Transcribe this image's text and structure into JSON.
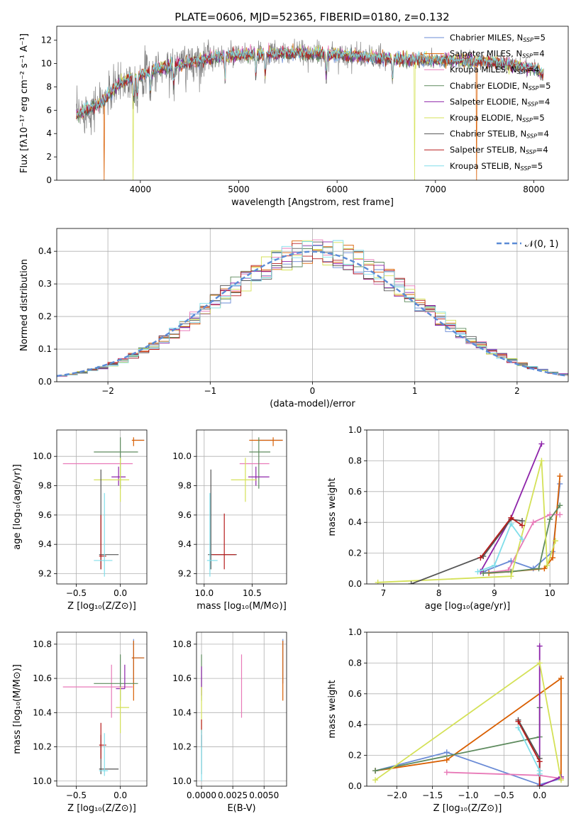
{
  "colors": {
    "Chabrier MILES": "#6a8bd6",
    "Salpeter MILES": "#d95f02",
    "Kroupa MILES": "#e87ab8",
    "Chabrier ELODIE": "#5d8a5d",
    "Salpeter ELODIE": "#8e24aa",
    "Kroupa ELODIE": "#d4e157",
    "Chabrier STELIB": "#555555",
    "Salpeter STELIB": "#b71c1c",
    "Kroupa STELIB": "#80deea",
    "gauss": "#5b8bd6"
  },
  "chart_data": [
    {
      "id": "spectrum",
      "type": "line",
      "title": "PLATE=0606, MJD=52365, FIBERID=0180, z=0.132",
      "xlabel": "wavelength [Angstrom, rest frame]",
      "ylabel": "Flux [fλ10⁻¹⁷ erg cm⁻² s⁻¹ A⁻¹]",
      "xlim": [
        3150,
        8350
      ],
      "ylim": [
        0,
        13.2
      ],
      "xticks": [
        "4000",
        "5000",
        "6000",
        "7000",
        "8000"
      ],
      "yticks": [
        "0",
        "2",
        "4",
        "6",
        "8",
        "10",
        "12"
      ],
      "xtick_values": [
        4000,
        5000,
        6000,
        7000,
        8000
      ],
      "ytick_values": [
        0,
        2,
        4,
        6,
        8,
        10,
        12
      ],
      "legend_position": "right",
      "legend": [
        {
          "label": "Chabrier MILES, N",
          "sub": "SSP",
          "suffix": "=5"
        },
        {
          "label": "Salpeter MILES, N",
          "sub": "SSP",
          "suffix": "=4"
        },
        {
          "label": "Kroupa MILES, N",
          "sub": "SSP",
          "suffix": "=4"
        },
        {
          "label": "Chabrier ELODIE, N",
          "sub": "SSP",
          "suffix": "=5"
        },
        {
          "label": "Salpeter ELODIE, N",
          "sub": "SSP",
          "suffix": "=4"
        },
        {
          "label": "Kroupa ELODIE, N",
          "sub": "SSP",
          "suffix": "=5"
        },
        {
          "label": "Chabrier STELIB, N",
          "sub": "SSP",
          "suffix": "=4"
        },
        {
          "label": "Salpeter STELIB, N",
          "sub": "SSP",
          "suffix": "=4"
        },
        {
          "label": "Kroupa STELIB, N",
          "sub": "SSP",
          "suffix": "=5"
        }
      ],
      "continuum": {
        "x": [
          3350,
          3600,
          3800,
          4000,
          4200,
          4500,
          4800,
          5200,
          5600,
          6000,
          6400,
          6800,
          7200,
          7600,
          8000,
          8100
        ],
        "y": [
          5.6,
          6.6,
          8.4,
          9.0,
          9.6,
          10.1,
          10.6,
          10.8,
          10.9,
          10.8,
          10.5,
          10.3,
          10.3,
          10.1,
          9.6,
          9.0
        ]
      },
      "drops": [
        {
          "x": 3630,
          "series": "Salpeter MILES"
        },
        {
          "x": 3925,
          "series": "Kroupa ELODIE"
        },
        {
          "x": 6790,
          "series": "Kroupa ELODIE"
        },
        {
          "x": 7420,
          "series": "Salpeter MILES"
        }
      ]
    },
    {
      "id": "residuals",
      "type": "bar",
      "xlabel": "(data-model)/error",
      "ylabel": "Normed distribution",
      "xlim": [
        -2.5,
        2.5
      ],
      "ylim": [
        0,
        0.47
      ],
      "xticks": [
        "−2",
        "−1",
        "0",
        "1",
        "2"
      ],
      "yticks": [
        "0.0",
        "0.1",
        "0.2",
        "0.3",
        "0.4"
      ],
      "xtick_values": [
        -2,
        -1,
        0,
        1,
        2
      ],
      "ytick_values": [
        0,
        0.1,
        0.2,
        0.3,
        0.4
      ],
      "legend": "𝒩(0, 1)",
      "legend_position": "top-right",
      "bin_width": 0.1
    },
    {
      "id": "age-vs-Z",
      "type": "scatter",
      "xlabel": "Z [log₁₀(Z/Z⊙)]",
      "ylabel": "age  [log₁₀(age/yr)]",
      "xlim": [
        -0.72,
        0.3
      ],
      "ylim": [
        9.13,
        10.18
      ],
      "xticks": [
        "−0.5",
        "0.0"
      ],
      "xtick_values": [
        -0.5,
        0.0
      ],
      "yticks": [
        "9.2",
        "9.4",
        "9.6",
        "9.8",
        "10.0"
      ],
      "ytick_values": [
        9.2,
        9.4,
        9.6,
        9.8,
        10.0
      ],
      "points": [
        {
          "series": "Chabrier MILES",
          "x": 0.15,
          "y": 10.11,
          "xerr": [
            0.0,
            0.12
          ],
          "yerr": [
            0.0,
            0.0
          ]
        },
        {
          "series": "Salpeter MILES",
          "x": 0.15,
          "y": 10.11,
          "xerr": [
            0.02,
            0.12
          ],
          "yerr": [
            0.04,
            0.02
          ]
        },
        {
          "series": "Kroupa MILES",
          "x": -0.1,
          "y": 9.95,
          "xerr": [
            0.55,
            0.24
          ],
          "yerr": [
            0.0,
            0.0
          ]
        },
        {
          "series": "Chabrier ELODIE",
          "x": 0.0,
          "y": 10.03,
          "xerr": [
            0.3,
            0.2
          ],
          "yerr": [
            0.25,
            0.1
          ]
        },
        {
          "series": "Salpeter ELODIE",
          "x": -0.02,
          "y": 9.86,
          "xerr": [
            0.08,
            0.08
          ],
          "yerr": [
            0.06,
            0.07
          ]
        },
        {
          "series": "Kroupa ELODIE",
          "x": 0.0,
          "y": 9.84,
          "xerr": [
            0.3,
            0.1
          ],
          "yerr": [
            0.15,
            0.15
          ]
        },
        {
          "series": "Chabrier STELIB",
          "x": -0.22,
          "y": 9.33,
          "xerr": [
            0.02,
            0.2
          ],
          "yerr": [
            0.1,
            0.58
          ]
        },
        {
          "series": "Salpeter STELIB",
          "x": -0.22,
          "y": 9.32,
          "xerr": [
            0.02,
            0.06
          ],
          "yerr": [
            0.09,
            0.28
          ]
        },
        {
          "series": "Kroupa STELIB",
          "x": -0.18,
          "y": 9.29,
          "xerr": [
            0.12,
            0.09
          ],
          "yerr": [
            0.11,
            0.46
          ]
        }
      ]
    },
    {
      "id": "age-vs-mass",
      "type": "scatter",
      "xlabel": "mass [log₁₀(M/M⊙)]",
      "ylabel": "",
      "xlim": [
        9.92,
        10.86
      ],
      "ylim": [
        9.13,
        10.18
      ],
      "xticks": [
        "10.0",
        "10.5"
      ],
      "xtick_values": [
        10.0,
        10.5
      ],
      "yticks": [
        "9.2",
        "9.4",
        "9.6",
        "9.8",
        "10.0"
      ],
      "ytick_values": [
        9.2,
        9.4,
        9.6,
        9.8,
        10.0
      ],
      "points": [
        {
          "series": "Chabrier MILES",
          "x": 10.71,
          "y": 10.11,
          "xerr": [
            0.15,
            0.11
          ],
          "yerr": [
            0.0,
            0.0
          ]
        },
        {
          "series": "Salpeter MILES",
          "x": 10.72,
          "y": 10.11,
          "xerr": [
            0.25,
            0.1
          ],
          "yerr": [
            0.04,
            0.02
          ]
        },
        {
          "series": "Kroupa MILES",
          "x": 10.55,
          "y": 9.95,
          "xerr": [
            0.18,
            0.13
          ],
          "yerr": [
            0.0,
            0.0
          ]
        },
        {
          "series": "Chabrier ELODIE",
          "x": 10.57,
          "y": 10.03,
          "xerr": [
            0.1,
            0.12
          ],
          "yerr": [
            0.25,
            0.1
          ]
        },
        {
          "series": "Salpeter ELODIE",
          "x": 10.54,
          "y": 9.86,
          "xerr": [
            0.08,
            0.14
          ],
          "yerr": [
            0.06,
            0.07
          ]
        },
        {
          "series": "Kroupa ELODIE",
          "x": 10.43,
          "y": 9.84,
          "xerr": [
            0.15,
            0.12
          ],
          "yerr": [
            0.15,
            0.15
          ]
        },
        {
          "series": "Chabrier STELIB",
          "x": 10.07,
          "y": 9.33,
          "xerr": [
            0.03,
            0.27
          ],
          "yerr": [
            0.1,
            0.58
          ]
        },
        {
          "series": "Salpeter STELIB",
          "x": 10.21,
          "y": 9.33,
          "xerr": [
            0.13,
            0.12
          ],
          "yerr": [
            0.1,
            0.28
          ]
        },
        {
          "series": "Kroupa STELIB",
          "x": 10.06,
          "y": 9.29,
          "xerr": [
            0.03,
            0.08
          ],
          "yerr": [
            0.11,
            0.46
          ]
        }
      ]
    },
    {
      "id": "weight-vs-age",
      "type": "line",
      "xlabel": "age  [log₁₀(age/yr)]",
      "ylabel": "mass weight",
      "xlim": [
        6.7,
        10.33
      ],
      "ylim": [
        0,
        1.0
      ],
      "xticks": [
        "7",
        "8",
        "9",
        "10"
      ],
      "xtick_values": [
        7,
        8,
        9,
        10
      ],
      "yticks": [
        "0.0",
        "0.2",
        "0.4",
        "0.6",
        "0.8",
        "1.0"
      ],
      "ytick_values": [
        0,
        0.2,
        0.4,
        0.6,
        0.8,
        1.0
      ],
      "series": [
        {
          "name": "Chabrier MILES",
          "x": [
            8.8,
            9.3,
            9.7,
            10.05,
            10.18
          ],
          "y": [
            0.08,
            0.15,
            0.1,
            0.21,
            0.65
          ]
        },
        {
          "name": "Salpeter MILES",
          "x": [
            8.9,
            9.3,
            9.9,
            10.05,
            10.18
          ],
          "y": [
            0.07,
            0.08,
            0.1,
            0.17,
            0.7
          ]
        },
        {
          "name": "Kroupa MILES",
          "x": [
            8.8,
            9.25,
            9.7,
            10.0,
            10.18
          ],
          "y": [
            0.07,
            0.09,
            0.4,
            0.45,
            0.45
          ]
        },
        {
          "name": "Chabrier ELODIE",
          "x": [
            8.8,
            9.3,
            9.8,
            10.0,
            10.18
          ],
          "y": [
            0.07,
            0.08,
            0.1,
            0.42,
            0.51
          ]
        },
        {
          "name": "Salpeter ELODIE",
          "x": [
            8.75,
            9.3,
            9.85
          ],
          "y": [
            0.08,
            0.43,
            0.91
          ]
        },
        {
          "name": "Kroupa ELODIE",
          "x": [
            6.9,
            9.3,
            9.85,
            9.95,
            10.1
          ],
          "y": [
            0.01,
            0.05,
            0.8,
            0.12,
            0.28
          ]
        },
        {
          "name": "Chabrier STELIB",
          "x": [
            7.5,
            8.8,
            9.3,
            9.5
          ],
          "y": [
            0.0,
            0.18,
            0.42,
            0.41
          ]
        },
        {
          "name": "Salpeter STELIB",
          "x": [
            8.75,
            9.3,
            9.5
          ],
          "y": [
            0.17,
            0.43,
            0.38
          ]
        },
        {
          "name": "Kroupa STELIB",
          "x": [
            8.7,
            9.0,
            9.3,
            9.5
          ],
          "y": [
            0.08,
            0.12,
            0.39,
            0.29
          ]
        }
      ]
    },
    {
      "id": "mass-vs-Z",
      "type": "scatter",
      "xlabel": "Z [log₁₀(Z/Z⊙)]",
      "ylabel": "mass [log₁₀(M/M⊙)]",
      "xlim": [
        -0.72,
        0.3
      ],
      "ylim": [
        9.97,
        10.87
      ],
      "xticks": [
        "−0.5",
        "0.0"
      ],
      "xtick_values": [
        -0.5,
        0.0
      ],
      "yticks": [
        "10.0",
        "10.2",
        "10.4",
        "10.6",
        "10.8"
      ],
      "ytick_values": [
        10.0,
        10.2,
        10.4,
        10.6,
        10.8
      ],
      "points": [
        {
          "series": "Chabrier MILES",
          "x": 0.15,
          "y": 10.72,
          "xerr": [
            0.02,
            0.12
          ],
          "yerr": [
            0.15,
            0.11
          ]
        },
        {
          "series": "Salpeter MILES",
          "x": 0.15,
          "y": 10.72,
          "xerr": [
            0.02,
            0.12
          ],
          "yerr": [
            0.25,
            0.1
          ]
        },
        {
          "series": "Kroupa MILES",
          "x": -0.1,
          "y": 10.55,
          "xerr": [
            0.55,
            0.24
          ],
          "yerr": [
            0.18,
            0.13
          ]
        },
        {
          "series": "Chabrier ELODIE",
          "x": 0.0,
          "y": 10.57,
          "xerr": [
            0.3,
            0.2
          ],
          "yerr": [
            0.1,
            0.17
          ]
        },
        {
          "series": "Salpeter ELODIE",
          "x": 0.05,
          "y": 10.54,
          "xerr": [
            0.1,
            0.0
          ],
          "yerr": [
            0.0,
            0.14
          ]
        },
        {
          "series": "Kroupa ELODIE",
          "x": 0.0,
          "y": 10.43,
          "xerr": [
            0.05,
            0.1
          ],
          "yerr": [
            0.15,
            0.12
          ]
        },
        {
          "series": "Chabrier STELIB",
          "x": -0.22,
          "y": 10.07,
          "xerr": [
            0.02,
            0.2
          ],
          "yerr": [
            0.03,
            0.2
          ]
        },
        {
          "series": "Salpeter STELIB",
          "x": -0.22,
          "y": 10.21,
          "xerr": [
            0.02,
            0.06
          ],
          "yerr": [
            0.08,
            0.13
          ]
        },
        {
          "series": "Kroupa STELIB",
          "x": -0.18,
          "y": 10.06,
          "xerr": [
            0.06,
            0.04
          ],
          "yerr": [
            0.03,
            0.22
          ]
        }
      ]
    },
    {
      "id": "mass-vs-EBV",
      "type": "scatter",
      "xlabel": "E(B-V)",
      "ylabel": "",
      "xlim": [
        -0.0004,
        0.0068
      ],
      "ylim": [
        9.97,
        10.87
      ],
      "xticks": [
        "0.0000",
        "0.0025",
        "0.0050"
      ],
      "xtick_values": [
        0.0,
        0.0025,
        0.005
      ],
      "yticks": [
        "10.0",
        "10.2",
        "10.4",
        "10.6",
        "10.8"
      ],
      "ytick_values": [
        10.0,
        10.2,
        10.4,
        10.6,
        10.8
      ],
      "points": [
        {
          "series": "Chabrier MILES",
          "x": 0.0065,
          "y": 10.72,
          "yerr": [
            0.15,
            0.11
          ]
        },
        {
          "series": "Salpeter MILES",
          "x": 0.0065,
          "y": 10.72,
          "yerr": [
            0.25,
            0.1
          ]
        },
        {
          "series": "Kroupa MILES",
          "x": 0.0032,
          "y": 10.55,
          "yerr": [
            0.18,
            0.19
          ]
        },
        {
          "series": "Chabrier ELODIE",
          "x": 0.0,
          "y": 10.57,
          "yerr": [
            0.1,
            0.17
          ]
        },
        {
          "series": "Salpeter ELODIE",
          "x": 0.0,
          "y": 10.57,
          "yerr": [
            0.07,
            0.1
          ]
        },
        {
          "series": "Kroupa ELODIE",
          "x": 0.0,
          "y": 10.43,
          "yerr": [
            0.15,
            0.12
          ]
        },
        {
          "series": "Chabrier STELIB",
          "x": 0.0,
          "y": 10.07,
          "yerr": [
            0.03,
            0.2
          ]
        },
        {
          "series": "Salpeter STELIB",
          "x": 0.0,
          "y": 10.28,
          "yerr": [
            0.08,
            0.08
          ]
        },
        {
          "series": "Kroupa STELIB",
          "x": 0.0,
          "y": 10.1,
          "yerr": [
            0.1,
            0.2
          ]
        }
      ]
    },
    {
      "id": "weight-vs-Z",
      "type": "line",
      "xlabel": "Z [log₁₀(Z/Z⊙)]",
      "ylabel": "mass weight",
      "xlim": [
        -2.42,
        0.4
      ],
      "ylim": [
        0,
        1.0
      ],
      "xticks": [
        "−2.0",
        "−1.5",
        "−1.0",
        "−0.5",
        "0.0"
      ],
      "xtick_values": [
        -2.0,
        -1.5,
        -1.0,
        -0.5,
        0.0
      ],
      "yticks": [
        "0.0",
        "0.2",
        "0.4",
        "0.6",
        "0.8",
        "1.0"
      ],
      "ytick_values": [
        0,
        0.2,
        0.4,
        0.6,
        0.8,
        1.0
      ],
      "series": [
        {
          "name": "Chabrier MILES",
          "x": [
            -2.3,
            -1.3,
            0.0,
            0.3
          ],
          "y": [
            0.1,
            0.22,
            0.01,
            0.05
          ]
        },
        {
          "name": "Salpeter MILES",
          "x": [
            -2.3,
            -1.3,
            0.3,
            0.3
          ],
          "y": [
            0.1,
            0.17,
            0.7,
            0.05
          ]
        },
        {
          "name": "Kroupa MILES",
          "x": [
            -1.3,
            0.0,
            0.3
          ],
          "y": [
            0.09,
            0.07,
            0.05
          ]
        },
        {
          "name": "Chabrier ELODIE",
          "x": [
            -2.3,
            0.0,
            0.0
          ],
          "y": [
            0.1,
            0.32,
            0.51
          ]
        },
        {
          "name": "Salpeter ELODIE",
          "x": [
            0.0,
            0.0,
            0.3
          ],
          "y": [
            0.91,
            0.0,
            0.06
          ]
        },
        {
          "name": "Kroupa ELODIE",
          "x": [
            -2.3,
            0.0,
            0.3
          ],
          "y": [
            0.04,
            0.8,
            0.04
          ]
        },
        {
          "name": "Chabrier STELIB",
          "x": [
            -0.3,
            0.0,
            0.0
          ],
          "y": [
            0.43,
            0.18,
            0.0
          ]
        },
        {
          "name": "Salpeter STELIB",
          "x": [
            -0.3,
            0.0,
            0.0
          ],
          "y": [
            0.42,
            0.16,
            0.0
          ]
        },
        {
          "name": "Kroupa STELIB",
          "x": [
            -0.3,
            0.0,
            0.0
          ],
          "y": [
            0.38,
            0.1,
            0.08
          ]
        }
      ]
    }
  ]
}
